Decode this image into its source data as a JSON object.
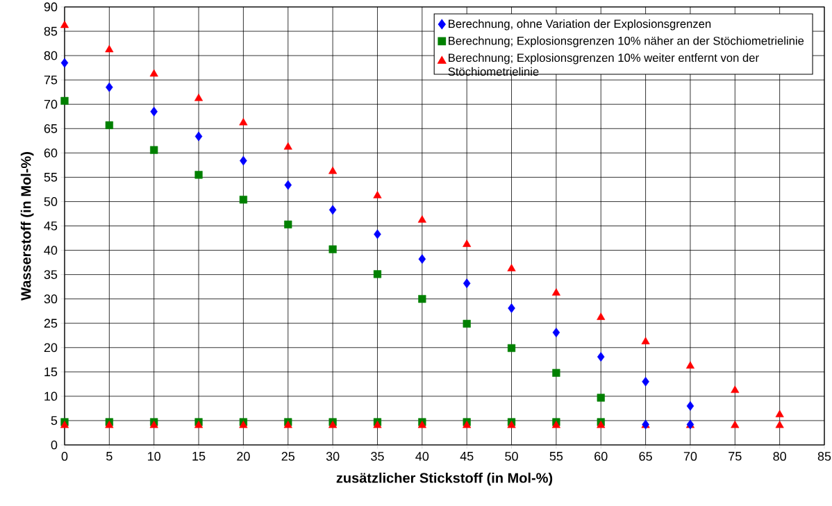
{
  "chart_data": {
    "type": "scatter",
    "xlabel": "zusätzlicher Stickstoff (in Mol-%)",
    "ylabel": "Wasserstoff (in Mol-%)",
    "xlim": [
      0,
      85
    ],
    "ylim": [
      0,
      90
    ],
    "xticks": [
      0,
      5,
      10,
      15,
      20,
      25,
      30,
      35,
      40,
      45,
      50,
      55,
      60,
      65,
      70,
      75,
      80,
      85
    ],
    "yticks": [
      0,
      5,
      10,
      15,
      20,
      25,
      30,
      35,
      40,
      45,
      50,
      55,
      60,
      65,
      70,
      75,
      80,
      85,
      90
    ],
    "grid": true,
    "legend": "top right",
    "series": [
      {
        "name": "Berechnung, ohne Variation der Explosionsgrenzen",
        "color": "#0000ff",
        "marker": "diamond",
        "x": [
          0,
          5,
          10,
          15,
          20,
          25,
          30,
          35,
          40,
          45,
          50,
          55,
          60,
          65,
          70,
          65,
          70
        ],
        "values": [
          78.5,
          73.5,
          68.5,
          63.4,
          58.4,
          53.4,
          48.3,
          43.3,
          38.2,
          33.2,
          28.1,
          23.1,
          18.1,
          13.0,
          8.0,
          4.2,
          4.2
        ]
      },
      {
        "name": "Berechnung; Explosionsgrenzen 10% näher an der Stöchiometrielinie",
        "color": "#008000",
        "marker": "square",
        "x": [
          0,
          5,
          10,
          15,
          20,
          25,
          30,
          35,
          40,
          45,
          50,
          55,
          60,
          0,
          5,
          10,
          15,
          20,
          25,
          30,
          35,
          40,
          45,
          50,
          55,
          60
        ],
        "values": [
          70.7,
          65.7,
          60.6,
          55.5,
          50.4,
          45.3,
          40.2,
          35.1,
          30.0,
          24.9,
          19.9,
          14.8,
          9.7,
          4.7,
          4.7,
          4.7,
          4.7,
          4.7,
          4.7,
          4.7,
          4.7,
          4.7,
          4.7,
          4.7,
          4.7,
          4.7
        ]
      },
      {
        "name": "Berechnung; Explosionsgrenzen 10% weiter entfernt von der Stöchiometrielinie",
        "color": "#ff0000",
        "marker": "triangle",
        "x": [
          0,
          5,
          10,
          15,
          20,
          25,
          30,
          35,
          40,
          45,
          50,
          55,
          60,
          65,
          70,
          75,
          80,
          0,
          5,
          10,
          15,
          20,
          25,
          30,
          35,
          40,
          45,
          50,
          55,
          60,
          65,
          70,
          75,
          80
        ],
        "values": [
          86.2,
          81.2,
          76.2,
          71.2,
          66.2,
          61.2,
          56.2,
          51.2,
          46.2,
          41.2,
          36.2,
          31.2,
          26.2,
          21.2,
          16.2,
          11.2,
          6.2,
          4.0,
          4.0,
          4.0,
          4.0,
          4.0,
          4.0,
          4.0,
          4.0,
          4.0,
          4.0,
          4.0,
          4.0,
          4.0,
          4.0,
          4.0,
          4.0,
          4.0
        ]
      }
    ]
  }
}
